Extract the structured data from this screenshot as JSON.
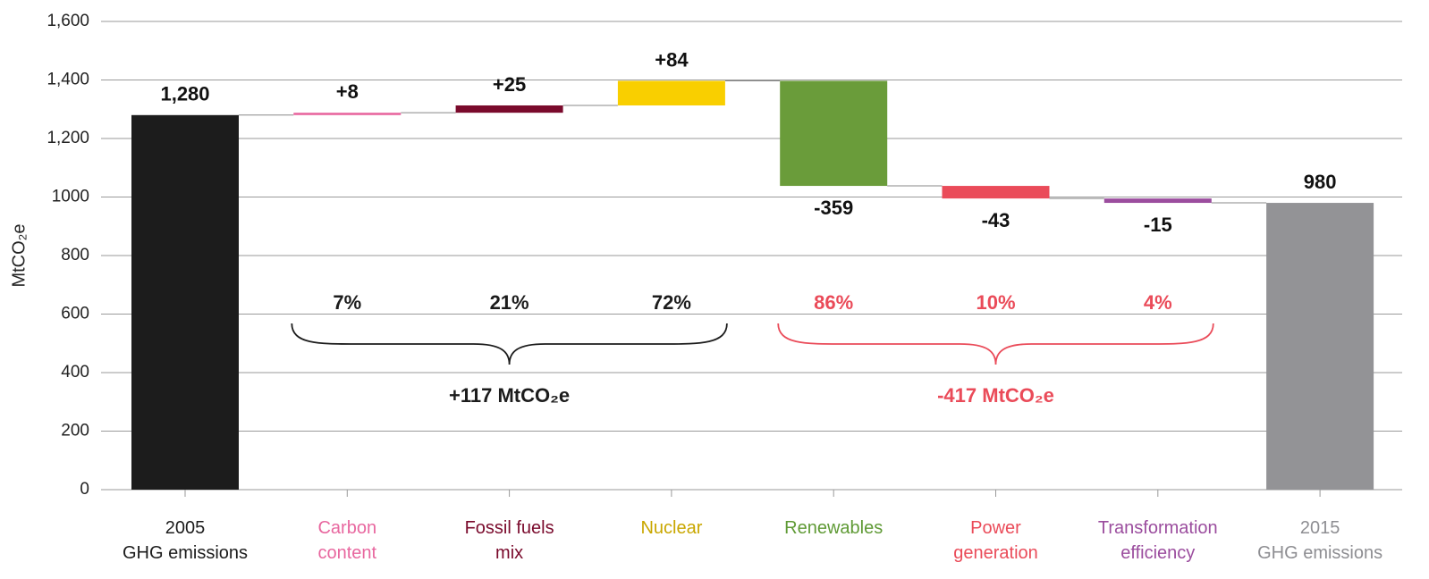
{
  "chart_data": {
    "type": "waterfall",
    "y_label": "MtCO₂e",
    "categories": [
      "2005\nGHG emissions",
      "Carbon\ncontent",
      "Fossil fuels\nmix",
      "Nuclear",
      "Renewables",
      "Power\ngeneration",
      "Transformation\nefficiency",
      "2015\nGHG emissions"
    ],
    "values": [
      1280,
      8,
      25,
      84,
      -359,
      -43,
      -15,
      980
    ],
    "value_labels": [
      "1,280",
      "+8",
      "+25",
      "+84",
      "-359",
      "-43",
      "-15",
      "980"
    ],
    "measure": [
      "absolute",
      "relative",
      "relative",
      "relative",
      "relative",
      "relative",
      "relative",
      "total"
    ],
    "colors": [
      "#1c1c1c",
      "#e8679f",
      "#7a0a2c",
      "#f9cf00",
      "#6a9c3a",
      "#ea4b59",
      "#9b4d9e",
      "#939396"
    ],
    "label_colors": [
      "#1c1c1c",
      "#e8679f",
      "#7a0a2c",
      "#c9a700",
      "#5f9a35",
      "#ea4b59",
      "#9b4d9e",
      "#8e8e92"
    ],
    "ylim": [
      0,
      1600
    ],
    "yticks": [
      0,
      200,
      400,
      600,
      800,
      1000,
      {
        "value": 1200,
        "label": "1,200"
      },
      {
        "value": 1400,
        "label": "1,400"
      },
      {
        "value": 1600,
        "label": "1,600"
      }
    ],
    "grid": true,
    "annotations": {
      "increase": {
        "label": "+117 MtCO₂e",
        "shares": [
          7,
          21,
          72
        ],
        "share_labels": [
          "7%",
          "21%",
          "72%"
        ],
        "color": "#1c1c1c"
      },
      "decrease": {
        "label": "-417 MtCO₂e",
        "shares": [
          86,
          10,
          4
        ],
        "share_labels": [
          "86%",
          "10%",
          "4%"
        ],
        "color": "#ea4b59"
      }
    }
  }
}
